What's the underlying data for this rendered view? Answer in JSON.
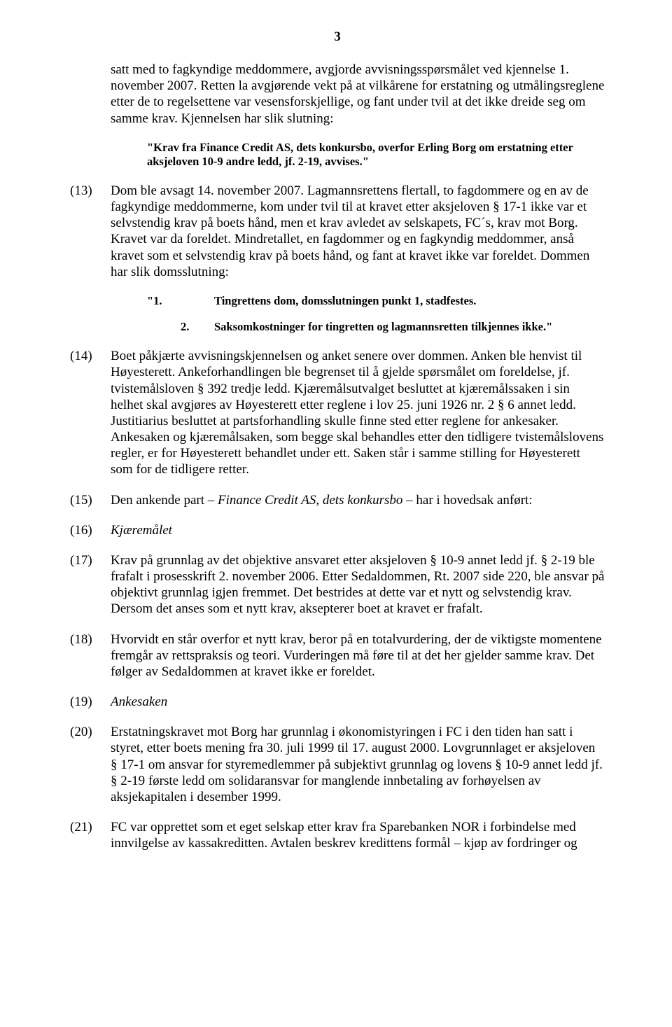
{
  "page_number": "3",
  "colors": {
    "text": "#000000",
    "background": "#ffffff"
  },
  "typography": {
    "body_family": "Times New Roman",
    "body_size_pt": 14,
    "quote_size_pt": 12
  },
  "intro_continuation": "satt med to fagkyndige meddommere, avgjorde avvisningsspørsmålet ved kjennelse 1. november 2007. Retten la avgjørende vekt på at vilkårene for erstatning og utmålingsreglene etter de to regelsettene var vesensforskjellige, og fant under tvil at det ikke dreide seg om samme krav. Kjennelsen har slik slutning:",
  "quote1": "\"Krav fra Finance Credit AS, dets konkursbo, overfor Erling Borg om erstatning etter aksjeloven 10-9 andre ledd, jf. 2-19, avvises.\"",
  "p13": {
    "num": "(13)",
    "text": "Dom ble avsagt 14. november 2007. Lagmannsrettens flertall, to fagdommere og en av de fagkyndige meddommerne, kom under tvil til at kravet etter aksjeloven § 17-1 ikke var et selvstendig krav på boets hånd, men et krav avledet av selskapets, FC´s, krav mot Borg. Kravet var da foreldet. Mindretallet, en fagdommer og en fagkyndig meddommer, anså kravet som et selvstendig krav på boets hånd, og fant at kravet ikke var foreldet. Dommen har slik domsslutning:"
  },
  "domslutning": {
    "rows": [
      {
        "outer": "\"1.",
        "inner": "",
        "body": "Tingrettens dom, domsslutningen punkt 1, stadfestes."
      },
      {
        "outer": "",
        "inner": "2.",
        "body": "Saksomkostninger for tingretten og lagmannsretten tilkjennes ikke.\""
      }
    ]
  },
  "p14": {
    "num": "(14)",
    "text": "Boet påkjærte avvisningskjennelsen og anket senere over dommen. Anken ble henvist til Høyesterett. Ankeforhandlingen ble begrenset til å gjelde spørsmålet om foreldelse, jf. tvistemålsloven § 392 tredje ledd. Kjæremålsutvalget besluttet at kjæremålssaken i sin helhet skal avgjøres av Høyesterett etter reglene i lov 25. juni 1926 nr. 2 § 6 annet ledd. Justitiarius besluttet at partsforhandling skulle finne sted etter reglene for ankesaker. Ankesaken og kjæremålsaken, som begge skal behandles etter den tidligere tvistemålslovens regler, er for Høyesterett behandlet under ett. Saken står i samme stilling for Høyesterett som for de tidligere retter."
  },
  "p15": {
    "num": "(15)",
    "prefix": "Den ankende part ",
    "italic": "Finance Credit AS, dets konkursbo",
    "suffix": " – har i hovedsak anført:"
  },
  "p16": {
    "num": "(16)",
    "italic": "Kjæremålet"
  },
  "p17": {
    "num": "(17)",
    "text": "Krav på grunnlag av det objektive ansvaret etter aksjeloven § 10-9 annet ledd jf. § 2-19 ble frafalt i prosesskrift 2. november 2006. Etter Sedaldommen, Rt. 2007 side 220, ble ansvar på objektivt grunnlag igjen fremmet. Det bestrides at dette var et nytt og selvstendig krav. Dersom det anses som et nytt krav, aksepterer boet at kravet er frafalt."
  },
  "p18": {
    "num": "(18)",
    "text": "Hvorvidt en står overfor et nytt krav, beror på en totalvurdering, der de viktigste momentene fremgår av rettspraksis og teori. Vurderingen må føre til at det her gjelder samme krav. Det følger av Sedaldommen at kravet ikke er foreldet."
  },
  "p19": {
    "num": "(19)",
    "italic": "Ankesaken"
  },
  "p20": {
    "num": "(20)",
    "text": "Erstatningskravet mot Borg har grunnlag i økonomistyringen i FC i den tiden han satt i styret, etter boets mening fra 30. juli 1999 til 17. august 2000. Lovgrunnlaget er aksjeloven § 17-1 om ansvar for styremedlemmer på subjektivt grunnlag og lovens § 10-9 annet ledd jf. § 2-19 første ledd om solidaransvar for manglende innbetaling av forhøyelsen av aksjekapitalen i desember 1999."
  },
  "p21": {
    "num": "(21)",
    "text": "FC var opprettet som et eget selskap etter krav fra Sparebanken NOR i forbindelse med innvilgelse av kassakreditten. Avtalen beskrev kredittens formål – kjøp av fordringer og"
  }
}
